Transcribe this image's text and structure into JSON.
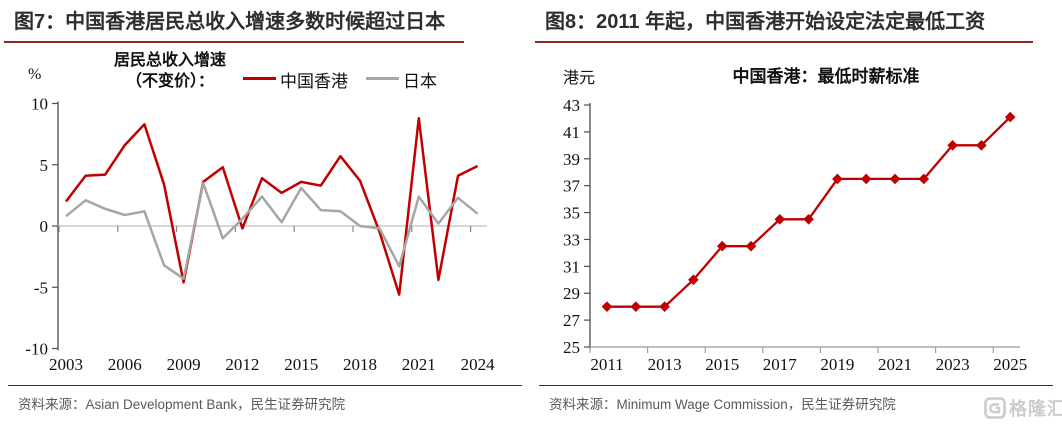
{
  "watermark": {
    "label": "格隆汇",
    "icon": "gelonghui-logo"
  },
  "chart_data": [
    {
      "type": "line",
      "panel_title": "图7：中国香港居民总收入增速多数时候超过日本",
      "axis_unit": "%",
      "legend_title": [
        "居民总收入增速",
        "（不变价）："
      ],
      "legend_position": "top",
      "grid": false,
      "x": [
        2003,
        2004,
        2005,
        2006,
        2007,
        2008,
        2009,
        2010,
        2011,
        2012,
        2013,
        2014,
        2015,
        2016,
        2017,
        2018,
        2019,
        2020,
        2021,
        2022,
        2023,
        2024
      ],
      "xticks": [
        2003,
        2006,
        2009,
        2012,
        2015,
        2018,
        2021,
        2024
      ],
      "ylim": [
        -10,
        10
      ],
      "yticks": [
        10,
        5,
        0,
        -5,
        -10
      ],
      "series": [
        {
          "name": "中国香港",
          "color": "#c00000",
          "values": [
            2.0,
            4.1,
            4.2,
            6.6,
            8.3,
            3.4,
            -4.6,
            3.6,
            4.8,
            -0.2,
            3.9,
            2.7,
            3.6,
            3.3,
            5.7,
            3.7,
            -0.5,
            -5.6,
            8.8,
            -4.4,
            4.1,
            4.9
          ]
        },
        {
          "name": "日本",
          "color": "#a6a6a6",
          "values": [
            0.8,
            2.1,
            1.4,
            0.9,
            1.2,
            -3.2,
            -4.3,
            3.5,
            -1.0,
            0.6,
            2.4,
            0.3,
            3.1,
            1.3,
            1.2,
            0.0,
            -0.2,
            -3.3,
            2.4,
            0.2,
            2.3,
            1.0
          ]
        }
      ],
      "source": "资料来源：Asian Development Bank，民生证券研究院"
    },
    {
      "type": "line",
      "panel_title": "图8：2011 年起，中国香港开始设定法定最低工资",
      "axis_unit": "港元",
      "title": "中国香港：最低时薪标准",
      "grid": false,
      "x": [
        2011,
        2012,
        2013,
        2014,
        2015,
        2016,
        2017,
        2018,
        2019,
        2020,
        2021,
        2022,
        2023,
        2024,
        2025
      ],
      "xticks": [
        2011,
        2013,
        2015,
        2017,
        2019,
        2021,
        2023,
        2025
      ],
      "ylim": [
        25,
        43
      ],
      "yticks": [
        43,
        41,
        39,
        37,
        35,
        33,
        31,
        29,
        27,
        25
      ],
      "series": [
        {
          "name": "最低时薪标准",
          "color": "#c00000",
          "marker": "diamond",
          "values": [
            28,
            28,
            28,
            30,
            32.5,
            32.5,
            34.5,
            34.5,
            37.5,
            37.5,
            37.5,
            37.5,
            40,
            40,
            42.1
          ]
        }
      ],
      "source": "资料来源：Minimum Wage Commission，民生证券研究院"
    }
  ]
}
